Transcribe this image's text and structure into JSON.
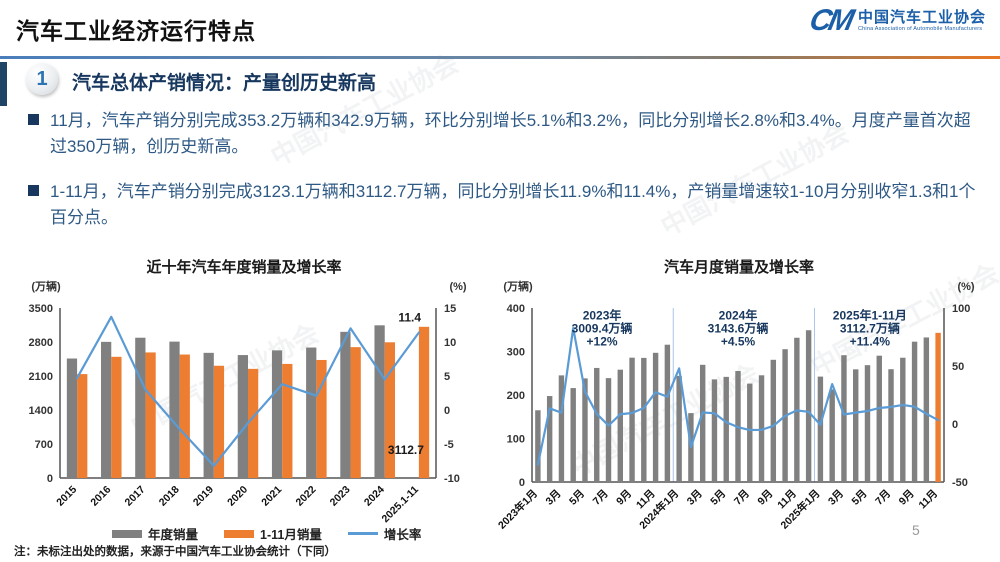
{
  "header": {
    "title": "汽车工业经济运行特点",
    "logo": {
      "monogram": "CM",
      "name_cn": "中国汽车工业协会",
      "name_en": "China Association of Automobile Manufacturers"
    }
  },
  "section": {
    "number": "1",
    "title": "汽车总体产销情况：产量创历史新高"
  },
  "bullets": [
    {
      "text": "11月，汽车产销分别完成353.2万辆和342.9万辆，环比分别增长5.1%和3.2%，同比分别增长2.8%和3.4%。月度产量首次超过350万辆，创历史新高。"
    },
    {
      "text": "1-11月，汽车产销分别完成3123.1万辆和3112.7万辆，同比分别增长11.9%和11.4%，产销量增速较1-10月分别收窄1.3和1个百分点。"
    }
  ],
  "legend": {
    "items": [
      {
        "type": "bar",
        "color": "#808080",
        "label": "年度销量"
      },
      {
        "type": "bar",
        "color": "#ED7D31",
        "label": "1-11月销量"
      },
      {
        "type": "line",
        "color": "#5B9BD5",
        "label": "增长率"
      }
    ]
  },
  "footnote": "注：未标注出处的数据，来源于中国汽车工业协会统计（下同）",
  "page_number": "5",
  "watermark": "中国汽车工业协会",
  "colors": {
    "bar_gray": "#808080",
    "bar_orange": "#ED7D31",
    "line_blue": "#5B9BD5",
    "text_navy": "#2E5984",
    "heading_navy": "#17375E",
    "logo_blue": "#1B5FA8"
  },
  "chart_data": [
    {
      "type": "bar",
      "title": "近十年汽车年度销量及增长率",
      "unit_left": "(万辆)",
      "unit_right": "(%)",
      "y_left": {
        "min": 0,
        "max": 3500,
        "ticks": [
          3500,
          2800,
          2100,
          1400,
          700,
          0
        ]
      },
      "y_right": {
        "min": -10,
        "max": 15,
        "ticks": [
          15,
          10,
          5,
          0,
          -5,
          -10
        ]
      },
      "categories": [
        "2015",
        "2016",
        "2017",
        "2018",
        "2019",
        "2020",
        "2021",
        "2022",
        "2023",
        "2024",
        "2025.1-11"
      ],
      "bar_series": [
        {
          "name": "年度销量",
          "color": "#808080",
          "values": [
            2460,
            2803,
            2888,
            2808,
            2577,
            2531,
            2628,
            2686,
            3009.4,
            3143.6,
            null
          ]
        },
        {
          "name": "1-11月销量",
          "color": "#ED7D31",
          "values": [
            2139,
            2495,
            2585,
            2542,
            2311,
            2247,
            2349,
            2430,
            2694,
            2794,
            3112.7
          ]
        }
      ],
      "line_series": [
        {
          "name": "增长率",
          "color": "#5B9BD5",
          "axis": "right",
          "values": [
            4.7,
            13.7,
            3.0,
            -2.8,
            -8.2,
            -1.9,
            3.8,
            2.1,
            12.0,
            4.5,
            11.4
          ]
        }
      ],
      "x_ticks": [
        {
          "i": 0,
          "label": "2015"
        },
        {
          "i": 1,
          "label": "2016"
        },
        {
          "i": 2,
          "label": "2017"
        },
        {
          "i": 3,
          "label": "2018"
        },
        {
          "i": 4,
          "label": "2019"
        },
        {
          "i": 5,
          "label": "2020"
        },
        {
          "i": 6,
          "label": "2021"
        },
        {
          "i": 7,
          "label": "2022"
        },
        {
          "i": 8,
          "label": "2023"
        },
        {
          "i": 9,
          "label": "2024"
        },
        {
          "i": 10,
          "label": "2025.1-11"
        }
      ],
      "annotations": [
        {
          "lines": [
            "11.4"
          ],
          "fx": 0.93,
          "fy": 0.02,
          "color": "#1a1a1a"
        },
        {
          "lines": [
            "3112.7"
          ],
          "fx": 0.92,
          "fy": 0.8,
          "color": "#1a1a1a"
        }
      ]
    },
    {
      "type": "bar",
      "title": "汽车月度销量及增长率",
      "unit_left": "(万辆)",
      "unit_right": "(%)",
      "y_left": {
        "min": 0,
        "max": 400,
        "ticks": [
          400,
          300,
          200,
          100,
          0
        ]
      },
      "y_right": {
        "min": -50,
        "max": 100,
        "ticks": [
          100,
          50,
          0,
          -50
        ]
      },
      "categories": [
        "2023年1月",
        "2月",
        "3月",
        "4月",
        "5月",
        "6月",
        "7月",
        "8月",
        "9月",
        "10月",
        "11月",
        "12月",
        "2024年1月",
        "2月",
        "3月",
        "4月",
        "5月",
        "6月",
        "7月",
        "8月",
        "9月",
        "10月",
        "11月",
        "12月",
        "2025年1月",
        "2月",
        "3月",
        "4月",
        "5月",
        "6月",
        "7月",
        "8月",
        "9月",
        "10月",
        "11月"
      ],
      "bar_series": [
        {
          "name": "月度销量",
          "color": "#808080",
          "values": [
            164.9,
            197.6,
            245.1,
            215.9,
            238.2,
            262.2,
            238.8,
            258.2,
            285.8,
            285.3,
            297.0,
            315.6,
            243.9,
            158.4,
            269.4,
            235.9,
            241.7,
            255.2,
            226.2,
            245.3,
            280.9,
            305.3,
            331.6,
            348.9,
            242.3,
            212.9,
            291.5,
            259.0,
            268.6,
            290.4,
            259.3,
            285.7,
            322.6,
            332.3,
            342.9
          ]
        }
      ],
      "bar_colors": {
        "34": "#ED7D31"
      },
      "line_series": [
        {
          "name": "增长率",
          "color": "#5B9BD5",
          "axis": "right",
          "values": [
            -35.0,
            13.5,
            9.7,
            82.7,
            27.9,
            8.8,
            -1.4,
            8.4,
            9.5,
            13.8,
            27.4,
            23.5,
            47.9,
            -19.9,
            9.9,
            9.3,
            1.5,
            -2.7,
            -5.2,
            -5.0,
            -1.7,
            7.0,
            11.7,
            10.5,
            -0.6,
            34.4,
            8.2,
            9.8,
            11.2,
            13.8,
            14.7,
            16.4,
            14.9,
            8.8,
            3.4
          ]
        }
      ],
      "separators": [
        12,
        24
      ],
      "x_ticks": [
        {
          "i": 0,
          "label": "2023年1月"
        },
        {
          "i": 2,
          "label": "3月"
        },
        {
          "i": 4,
          "label": "5月"
        },
        {
          "i": 6,
          "label": "7月"
        },
        {
          "i": 8,
          "label": "9月"
        },
        {
          "i": 10,
          "label": "11月"
        },
        {
          "i": 12,
          "label": "2024年1月"
        },
        {
          "i": 14,
          "label": "3月"
        },
        {
          "i": 16,
          "label": "5月"
        },
        {
          "i": 18,
          "label": "7月"
        },
        {
          "i": 20,
          "label": "9月"
        },
        {
          "i": 22,
          "label": "11月"
        },
        {
          "i": 24,
          "label": "2025年1月"
        },
        {
          "i": 26,
          "label": "3月"
        },
        {
          "i": 28,
          "label": "5月"
        },
        {
          "i": 30,
          "label": "7月"
        },
        {
          "i": 32,
          "label": "9月"
        },
        {
          "i": 34,
          "label": "11月"
        }
      ],
      "annotations": [
        {
          "lines": [
            "2023年",
            "3009.4万辆",
            "+12%"
          ],
          "fx": 0.17,
          "fy": 0.01,
          "color": "#17375E"
        },
        {
          "lines": [
            "2024年",
            "3143.6万辆",
            "+4.5%"
          ],
          "fx": 0.5,
          "fy": 0.01,
          "color": "#17375E"
        },
        {
          "lines": [
            "2025年1-11月",
            "3112.7万辆",
            "+11.4%"
          ],
          "fx": 0.82,
          "fy": 0.01,
          "color": "#17375E"
        }
      ]
    }
  ]
}
